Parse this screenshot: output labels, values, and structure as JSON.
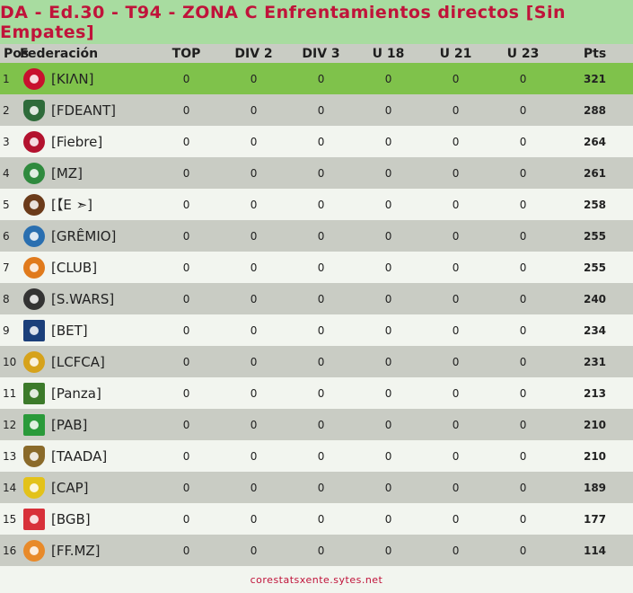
{
  "title": "DA - Ed.30 - T94 - ZONA C Enfrentamientos directos [Sin Empates]",
  "columns": {
    "pos": "Pos",
    "fed": "Federación",
    "top": "TOP",
    "div2": "DIV 2",
    "div3": "DIV 3",
    "u18": "U 18",
    "u21": "U 21",
    "u23": "U 23",
    "pts": "Pts"
  },
  "rows": [
    {
      "pos": "1",
      "name": "[KΙΛΝ]",
      "top": "0",
      "div2": "0",
      "div3": "0",
      "u18": "0",
      "u21": "0",
      "u23": "0",
      "pts": "321",
      "crest": "red-white-crest-icon",
      "color": "#c8102e"
    },
    {
      "pos": "2",
      "name": "[FDEANT]",
      "top": "0",
      "div2": "0",
      "div3": "0",
      "u18": "0",
      "u21": "0",
      "u23": "0",
      "pts": "288",
      "crest": "green-shield-crest-icon",
      "color": "#2e6b3a"
    },
    {
      "pos": "3",
      "name": "[Fiebre]",
      "top": "0",
      "div2": "0",
      "div3": "0",
      "u18": "0",
      "u21": "0",
      "u23": "0",
      "pts": "264",
      "crest": "red-black-crest-icon",
      "color": "#b3122e"
    },
    {
      "pos": "4",
      "name": "[MZ]",
      "top": "0",
      "div2": "0",
      "div3": "0",
      "u18": "0",
      "u21": "0",
      "u23": "0",
      "pts": "261",
      "crest": "green-diamond-crest-icon",
      "color": "#2f8a3e"
    },
    {
      "pos": "5",
      "name": "[【E ➣]",
      "top": "0",
      "div2": "0",
      "div3": "0",
      "u18": "0",
      "u21": "0",
      "u23": "0",
      "pts": "258",
      "crest": "brown-round-crest-icon",
      "color": "#6b3b1a"
    },
    {
      "pos": "6",
      "name": "[GRÊMIO]",
      "top": "0",
      "div2": "0",
      "div3": "0",
      "u18": "0",
      "u21": "0",
      "u23": "0",
      "pts": "255",
      "crest": "blue-black-crest-icon",
      "color": "#2a6fb0"
    },
    {
      "pos": "7",
      "name": "[CLUB]",
      "top": "0",
      "div2": "0",
      "div3": "0",
      "u18": "0",
      "u21": "0",
      "u23": "0",
      "pts": "255",
      "crest": "orange-ball-crest-icon",
      "color": "#e07a1c"
    },
    {
      "pos": "8",
      "name": "[S.WARS]",
      "top": "0",
      "div2": "0",
      "div3": "0",
      "u18": "0",
      "u21": "0",
      "u23": "0",
      "pts": "240",
      "crest": "stormtrooper-crest-icon",
      "color": "#333333"
    },
    {
      "pos": "9",
      "name": "[BET]",
      "top": "0",
      "div2": "0",
      "div3": "0",
      "u18": "0",
      "u21": "0",
      "u23": "0",
      "pts": "234",
      "crest": "blue-banner-crest-icon",
      "color": "#1b3f7a"
    },
    {
      "pos": "10",
      "name": "[LCFCA]",
      "top": "0",
      "div2": "0",
      "div3": "0",
      "u18": "0",
      "u21": "0",
      "u23": "0",
      "pts": "231",
      "crest": "yellow-black-crest-icon",
      "color": "#d6a21b"
    },
    {
      "pos": "11",
      "name": "[Panza]",
      "top": "0",
      "div2": "0",
      "div3": "0",
      "u18": "0",
      "u21": "0",
      "u23": "0",
      "pts": "213",
      "crest": "green-figure-crest-icon",
      "color": "#3c7a2a"
    },
    {
      "pos": "12",
      "name": "[PAB]",
      "top": "0",
      "div2": "0",
      "div3": "0",
      "u18": "0",
      "u21": "0",
      "u23": "0",
      "pts": "210",
      "crest": "brazil-flag-icon",
      "color": "#2a9a3a"
    },
    {
      "pos": "13",
      "name": "[TAADA]",
      "top": "0",
      "div2": "0",
      "div3": "0",
      "u18": "0",
      "u21": "0",
      "u23": "0",
      "pts": "210",
      "crest": "gold-shield-crest-icon",
      "color": "#8a6a2a"
    },
    {
      "pos": "14",
      "name": "[CAP]",
      "top": "0",
      "div2": "0",
      "div3": "0",
      "u18": "0",
      "u21": "0",
      "u23": "0",
      "pts": "189",
      "crest": "yellow-striped-shield-icon",
      "color": "#e3c21a"
    },
    {
      "pos": "15",
      "name": "[BGB]",
      "top": "0",
      "div2": "0",
      "div3": "0",
      "u18": "0",
      "u21": "0",
      "u23": "0",
      "pts": "177",
      "crest": "red-white-flag-icon",
      "color": "#d8313a"
    },
    {
      "pos": "16",
      "name": "[FF.MZ]",
      "top": "0",
      "div2": "0",
      "div3": "0",
      "u18": "0",
      "u21": "0",
      "u23": "0",
      "pts": "114",
      "crest": "orange-phoenix-icon",
      "color": "#e88a2a"
    }
  ],
  "footer": "corestatsxente.sytes.net",
  "colors": {
    "title_bg": "#a8dca0",
    "title_text": "#c0133a",
    "leader_row": "#7fc24b",
    "alt_row": "#c9ccc4",
    "base_row": "#f2f5ef"
  }
}
